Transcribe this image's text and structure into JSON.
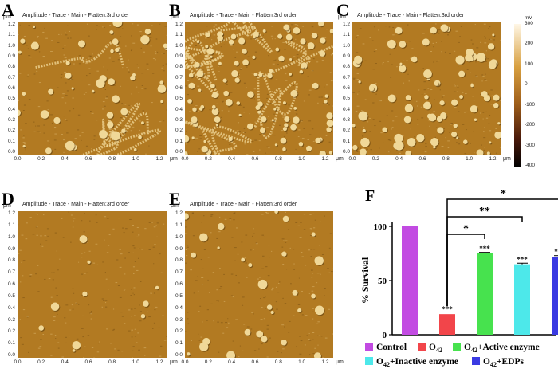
{
  "figure": {
    "panels": [
      {
        "id": "A",
        "label": "A",
        "title": "Amplitude - Trace - Main - Flatten:3rd order"
      },
      {
        "id": "B",
        "label": "B",
        "title": "Amplitude - Trace - Main - Flatten:3rd order"
      },
      {
        "id": "C",
        "label": "C",
        "title": "Amplitude - Trace - Main - Flatten:3rd order"
      },
      {
        "id": "D",
        "label": "D",
        "title": "Amplitude - Trace - Main - Flatten:3rd order"
      },
      {
        "id": "E",
        "label": "E",
        "title": "Amplitude - Trace - Main - Flatten:3rd order"
      }
    ],
    "axis_unit": "μm",
    "y_ticks": [
      "0.0",
      "0.1",
      "0.2",
      "0.3",
      "0.4",
      "0.5",
      "0.6",
      "0.7",
      "0.8",
      "0.9",
      "1.0",
      "1.1",
      "1.2"
    ],
    "x_ticks": [
      "0.0",
      "0.2",
      "0.4",
      "0.6",
      "0.8",
      "1.0",
      "1.2"
    ],
    "colorbar": {
      "unit": "mV",
      "ticks": [
        "300",
        "200",
        "100",
        "0",
        "-100",
        "-200",
        "-300",
        "-400"
      ]
    },
    "colors": {
      "afm_base": "#b27a22",
      "afm_light": "#f0d898",
      "afm_dark": "#5a3a0c"
    }
  },
  "chart_data": {
    "panel_label": "F",
    "type": "bar",
    "ylabel": "% Survival",
    "ylim": [
      0,
      100
    ],
    "yticks": [
      "0",
      "50",
      "100"
    ],
    "categories": [
      "Control",
      "O42",
      "O42+Active enzyme",
      "O42+Inactive enzyme",
      "O42+EDPs"
    ],
    "values": [
      100,
      19,
      75,
      65,
      72
    ],
    "errors": [
      0,
      0,
      1,
      1,
      1
    ],
    "colors": [
      "#c24be2",
      "#f2454a",
      "#47e24e",
      "#4de8ea",
      "#3a3ae2"
    ],
    "bar_annotations": [
      "",
      "***",
      "***",
      "***",
      "***"
    ],
    "comparisons": [
      {
        "from": "O42",
        "to": "O42+Active enzyme",
        "label": "*"
      },
      {
        "from": "O42",
        "to": "O42+Inactive enzyme",
        "label": "**"
      },
      {
        "from": "O42",
        "to": "O42+EDPs",
        "label": "*"
      }
    ],
    "legend": [
      {
        "label": "Control",
        "sub": "",
        "tail": ""
      },
      {
        "label": "O",
        "sub": "42",
        "tail": ""
      },
      {
        "label": "O",
        "sub": "42",
        "tail": "+Active enzyme"
      },
      {
        "label": "O",
        "sub": "42",
        "tail": "+Inactive enzyme"
      },
      {
        "label": "O",
        "sub": "42",
        "tail": "+EDPs"
      }
    ]
  }
}
